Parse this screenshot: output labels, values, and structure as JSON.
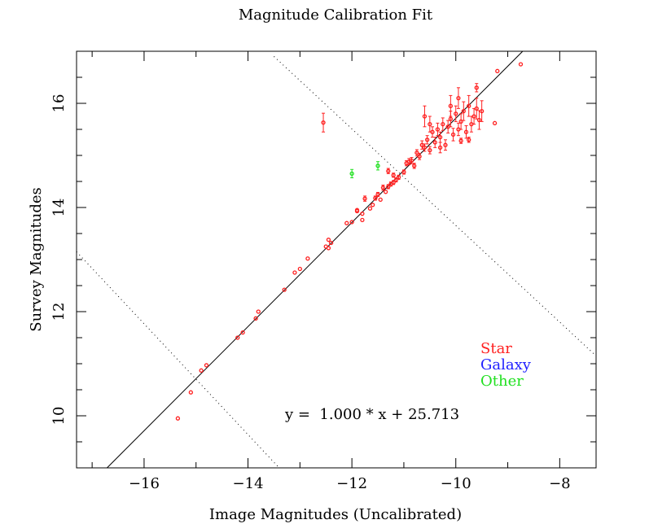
{
  "chart_data": {
    "type": "scatter",
    "title": "Magnitude Calibration Fit",
    "xlabel": "Image Magnitudes (Uncalibrated)",
    "ylabel": "Survey Magnitudes",
    "xlim": [
      -17.3,
      -7.3
    ],
    "ylim": [
      9.0,
      17.0
    ],
    "xticks": [
      -16,
      -14,
      -12,
      -10,
      -8
    ],
    "yticks": [
      10,
      12,
      14,
      16
    ],
    "xtick_labels": [
      "−16",
      "−14",
      "−12",
      "−10",
      "−8"
    ],
    "ytick_labels": [
      "10",
      "12",
      "14",
      "16"
    ],
    "grid": false,
    "fit": {
      "slope": 1.0,
      "intercept": 25.713,
      "label": "y =  1.000 * x + 25.713"
    },
    "clip_lines": [
      {
        "x": [
          -13.5,
          -7.3
        ],
        "y": [
          16.9,
          11.15
        ]
      },
      {
        "x": [
          -17.3,
          -13.4
        ],
        "y": [
          13.15,
          9.0
        ]
      }
    ],
    "legend": {
      "position": "lower-right",
      "entries": [
        {
          "label": "Star",
          "color": "#ff2020"
        },
        {
          "label": "Galaxy",
          "color": "#2020ff"
        },
        {
          "label": "Other",
          "color": "#20e020"
        }
      ]
    },
    "series": [
      {
        "name": "Star",
        "color": "#ff2020",
        "points": [
          [
            -15.35,
            9.95,
            0.02
          ],
          [
            -15.1,
            10.45,
            0.02
          ],
          [
            -14.9,
            10.87,
            0.02
          ],
          [
            -14.8,
            10.97,
            0.02
          ],
          [
            -14.2,
            11.5,
            0.02
          ],
          [
            -14.1,
            11.6,
            0.02
          ],
          [
            -13.85,
            11.87,
            0.03
          ],
          [
            -13.8,
            12.0,
            0.02
          ],
          [
            -13.3,
            12.42,
            0.02
          ],
          [
            -13.1,
            12.75,
            0.02
          ],
          [
            -13.0,
            12.82,
            0.02
          ],
          [
            -12.85,
            13.02,
            0.02
          ],
          [
            -12.5,
            13.25,
            0.02
          ],
          [
            -12.45,
            13.38,
            0.03
          ],
          [
            -12.45,
            13.22,
            0.02
          ],
          [
            -12.4,
            13.32,
            0.02
          ],
          [
            -12.0,
            13.72,
            0.02
          ],
          [
            -11.9,
            13.93,
            0.03
          ],
          [
            -11.8,
            13.88,
            0.03
          ],
          [
            -11.8,
            13.76,
            0.03
          ],
          [
            -11.75,
            14.17,
            0.05
          ],
          [
            -11.65,
            13.98,
            0.03
          ],
          [
            -11.6,
            14.05,
            0.03
          ],
          [
            -11.55,
            14.18,
            0.04
          ],
          [
            -11.5,
            14.25,
            0.04
          ],
          [
            -11.45,
            14.15,
            0.03
          ],
          [
            -11.4,
            14.38,
            0.05
          ],
          [
            -11.35,
            14.3,
            0.03
          ],
          [
            -11.3,
            14.4,
            0.04
          ],
          [
            -11.25,
            14.45,
            0.04
          ],
          [
            -11.2,
            14.48,
            0.04
          ],
          [
            -11.15,
            14.53,
            0.04
          ],
          [
            -11.1,
            14.58,
            0.04
          ],
          [
            -11.3,
            14.7,
            0.05
          ],
          [
            -11.2,
            14.62,
            0.04
          ],
          [
            -11.0,
            14.68,
            0.04
          ],
          [
            -10.95,
            14.85,
            0.05
          ],
          [
            -10.9,
            14.88,
            0.06
          ],
          [
            -10.85,
            14.9,
            0.06
          ],
          [
            -10.8,
            14.8,
            0.05
          ],
          [
            -10.75,
            15.05,
            0.06
          ],
          [
            -10.7,
            14.98,
            0.06
          ],
          [
            -10.65,
            15.2,
            0.08
          ],
          [
            -10.6,
            15.15,
            0.07
          ],
          [
            -10.55,
            15.3,
            0.08
          ],
          [
            -10.5,
            15.1,
            0.07
          ],
          [
            -10.45,
            15.45,
            0.1
          ],
          [
            -10.4,
            15.25,
            0.1
          ],
          [
            -10.35,
            15.5,
            0.12
          ],
          [
            -10.3,
            15.35,
            0.1
          ],
          [
            -10.25,
            15.6,
            0.12
          ],
          [
            -10.2,
            15.2,
            0.1
          ],
          [
            -10.15,
            15.55,
            0.12
          ],
          [
            -10.1,
            15.7,
            0.15
          ],
          [
            -10.05,
            15.4,
            0.12
          ],
          [
            -10.0,
            15.8,
            0.15
          ],
          [
            -9.95,
            15.5,
            0.12
          ],
          [
            -9.9,
            15.65,
            0.15
          ],
          [
            -9.85,
            15.85,
            0.18
          ],
          [
            -9.8,
            15.45,
            0.12
          ],
          [
            -9.75,
            15.95,
            0.2
          ],
          [
            -9.7,
            15.6,
            0.15
          ],
          [
            -9.65,
            15.75,
            0.15
          ],
          [
            -9.6,
            15.9,
            0.2
          ],
          [
            -9.55,
            15.68,
            0.18
          ],
          [
            -9.5,
            15.85,
            0.2
          ],
          [
            -9.75,
            15.3,
            0.05
          ],
          [
            -9.9,
            15.28,
            0.05
          ],
          [
            -10.3,
            15.15,
            0.1
          ],
          [
            -10.5,
            15.6,
            0.15
          ],
          [
            -10.6,
            15.75,
            0.2
          ],
          [
            -10.1,
            15.95,
            0.2
          ],
          [
            -9.95,
            16.1,
            0.2
          ],
          [
            -9.6,
            16.3,
            0.08
          ],
          [
            -9.2,
            16.62,
            0.02
          ],
          [
            -9.25,
            15.62,
            0.02
          ],
          [
            -8.75,
            16.75,
            0.02
          ],
          [
            -12.55,
            15.63,
            0.18
          ],
          [
            -12.1,
            13.7,
            0.02
          ],
          [
            -11.9,
            13.95,
            0.02
          ]
        ]
      },
      {
        "name": "Other",
        "color": "#20e020",
        "points": [
          [
            -12.0,
            14.65,
            0.08
          ],
          [
            -11.5,
            14.8,
            0.08
          ]
        ]
      }
    ]
  }
}
